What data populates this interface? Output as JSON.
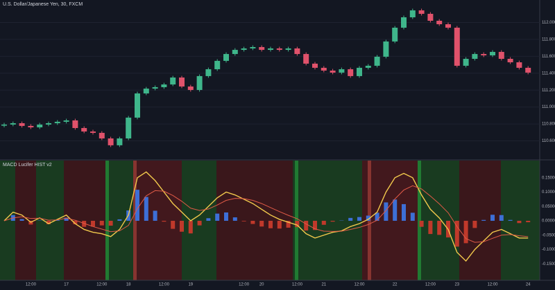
{
  "chart_data": [
    {
      "type": "candlestick",
      "title": "U.S. Dollar/Japanese Yen, 30, FXCM",
      "up_color": "#3fb68b",
      "down_color": "#e0526b",
      "grid": true,
      "ylim": [
        110.4,
        112.2
      ],
      "yticks": [
        {
          "value": 110.6,
          "label": "110.600"
        },
        {
          "value": 110.8,
          "label": "110.800"
        },
        {
          "value": 111.0,
          "label": "111.000"
        },
        {
          "value": 111.2,
          "label": "111.200"
        },
        {
          "value": 111.4,
          "label": "111.400"
        },
        {
          "value": 111.6,
          "label": "111.600"
        },
        {
          "value": 111.8,
          "label": "111.800"
        },
        {
          "value": 112.0,
          "label": "112.000"
        }
      ],
      "open": [
        110.78,
        110.793,
        110.809,
        110.777,
        110.76,
        110.793,
        110.809,
        110.826,
        110.842,
        110.752,
        110.711,
        110.695,
        110.629,
        110.548,
        110.629,
        110.875,
        111.161,
        111.218,
        111.235,
        111.267,
        111.349,
        111.243,
        111.202,
        111.366,
        111.447,
        111.546,
        111.627,
        111.676,
        111.693,
        111.709,
        111.676,
        111.693,
        111.676,
        111.693,
        111.627,
        111.513,
        111.464,
        111.431,
        111.407,
        111.447,
        111.366,
        111.464,
        111.488,
        111.595,
        111.775,
        111.938,
        112.061,
        112.143,
        112.102,
        112.02,
        111.979,
        111.938,
        111.488,
        111.57,
        111.627,
        111.611,
        111.652,
        111.57,
        111.529,
        111.464
      ],
      "high": [
        110.813,
        110.829,
        110.829,
        110.797,
        110.813,
        110.829,
        110.846,
        110.862,
        110.862,
        110.772,
        110.731,
        110.715,
        110.649,
        110.649,
        110.895,
        111.181,
        111.238,
        111.255,
        111.287,
        111.369,
        111.369,
        111.263,
        111.386,
        111.467,
        111.566,
        111.647,
        111.696,
        111.713,
        111.729,
        111.729,
        111.713,
        111.713,
        111.713,
        111.713,
        111.647,
        111.533,
        111.484,
        111.451,
        111.467,
        111.467,
        111.484,
        111.508,
        111.615,
        111.795,
        111.958,
        112.081,
        112.163,
        112.163,
        112.122,
        112.04,
        111.999,
        111.958,
        111.59,
        111.647,
        111.647,
        111.672,
        111.672,
        111.59,
        111.549,
        111.484
      ],
      "low": [
        110.76,
        110.773,
        110.757,
        110.74,
        110.74,
        110.773,
        110.789,
        110.806,
        110.732,
        110.691,
        110.675,
        110.609,
        110.528,
        110.528,
        110.609,
        110.855,
        111.141,
        111.198,
        111.215,
        111.247,
        111.223,
        111.182,
        111.182,
        111.346,
        111.427,
        111.526,
        111.607,
        111.656,
        111.673,
        111.656,
        111.656,
        111.656,
        111.656,
        111.607,
        111.493,
        111.444,
        111.411,
        111.387,
        111.387,
        111.346,
        111.346,
        111.444,
        111.468,
        111.575,
        111.755,
        111.918,
        112.041,
        112.082,
        112.0,
        111.959,
        111.918,
        111.468,
        111.468,
        111.55,
        111.591,
        111.591,
        111.55,
        111.509,
        111.444,
        111.387
      ],
      "close": [
        110.793,
        110.809,
        110.777,
        110.76,
        110.793,
        110.809,
        110.826,
        110.842,
        110.752,
        110.711,
        110.695,
        110.629,
        110.548,
        110.629,
        110.875,
        111.161,
        111.218,
        111.235,
        111.267,
        111.349,
        111.243,
        111.202,
        111.366,
        111.447,
        111.546,
        111.627,
        111.676,
        111.693,
        111.709,
        111.676,
        111.693,
        111.676,
        111.693,
        111.627,
        111.513,
        111.464,
        111.431,
        111.407,
        111.447,
        111.366,
        111.464,
        111.488,
        111.595,
        111.775,
        111.938,
        112.061,
        112.143,
        112.102,
        112.02,
        111.979,
        111.938,
        111.488,
        111.57,
        111.627,
        111.611,
        111.652,
        111.57,
        111.529,
        111.464,
        111.407
      ]
    },
    {
      "type": "macd",
      "title": "MACD Lucifer HIST v2",
      "ylim": [
        -0.2,
        0.2
      ],
      "yticks": [
        {
          "value": -0.15,
          "label": "-0.15000"
        },
        {
          "value": -0.1,
          "label": "-0.10000"
        },
        {
          "value": -0.05,
          "label": "-0.05000"
        },
        {
          "value": 0,
          "label": "0.00000"
        },
        {
          "value": 0.05,
          "label": "0.05000"
        },
        {
          "value": 0.1,
          "label": "0.10000"
        },
        {
          "value": 0.15,
          "label": "0.15000"
        }
      ],
      "categories": [
        null,
        null,
        null,
        "12:00",
        null,
        null,
        null,
        "17",
        null,
        null,
        null,
        "12:00",
        null,
        null,
        "18",
        null,
        null,
        null,
        "12:00",
        null,
        null,
        "19",
        null,
        null,
        null,
        null,
        null,
        "12:00",
        null,
        "20",
        null,
        null,
        null,
        "12:00",
        null,
        null,
        "21",
        null,
        null,
        null,
        "12:00",
        null,
        null,
        null,
        "22",
        null,
        null,
        null,
        "12:00",
        null,
        null,
        "23",
        null,
        null,
        null,
        "12:00",
        null,
        null,
        null,
        "24"
      ],
      "series": [
        {
          "color": "#f2c94c",
          "values": [
            0.0,
            0.03,
            0.02,
            -0.005,
            0.01,
            -0.01,
            0.005,
            0.02,
            -0.01,
            -0.03,
            -0.04,
            -0.045,
            -0.055,
            -0.03,
            0.02,
            0.15,
            0.17,
            0.14,
            0.1,
            0.06,
            0.03,
            0.0,
            0.02,
            0.05,
            0.08,
            0.1,
            0.09,
            0.075,
            0.06,
            0.04,
            0.02,
            0.005,
            -0.005,
            -0.015,
            -0.045,
            -0.06,
            -0.05,
            -0.04,
            -0.035,
            -0.02,
            -0.01,
            0.005,
            0.03,
            0.1,
            0.15,
            0.165,
            0.15,
            0.09,
            0.04,
            0.01,
            -0.03,
            -0.11,
            -0.14,
            -0.1,
            -0.07,
            -0.04,
            -0.03,
            -0.045,
            -0.06,
            -0.06
          ]
        },
        {
          "color": "#e05a47",
          "values": [
            0.0,
            0.01,
            0.014,
            0.008,
            0.009,
            0.002,
            0.003,
            0.009,
            0.002,
            -0.009,
            -0.02,
            -0.029,
            -0.038,
            -0.035,
            -0.016,
            0.042,
            0.087,
            0.105,
            0.103,
            0.088,
            0.068,
            0.044,
            0.036,
            0.041,
            0.055,
            0.071,
            0.078,
            0.077,
            0.071,
            0.06,
            0.046,
            0.032,
            0.019,
            0.007,
            -0.011,
            -0.028,
            -0.036,
            -0.037,
            -0.036,
            -0.03,
            -0.023,
            -0.013,
            0.002,
            0.036,
            0.076,
            0.107,
            0.122,
            0.111,
            0.086,
            0.059,
            0.028,
            -0.02,
            -0.062,
            -0.075,
            -0.073,
            -0.061,
            -0.05,
            -0.048,
            -0.052,
            -0.055
          ]
        }
      ],
      "hist_up_color": "#3d6fd6",
      "hist_down_color": "#c0392b",
      "hist": [
        0.0,
        0.02,
        0.006,
        -0.013,
        0.001,
        -0.012,
        0.002,
        0.011,
        -0.012,
        -0.021,
        -0.02,
        -0.016,
        -0.017,
        0.005,
        0.036,
        0.108,
        0.083,
        0.035,
        -0.003,
        -0.028,
        -0.038,
        -0.044,
        -0.016,
        0.009,
        0.025,
        0.029,
        0.012,
        -0.002,
        -0.011,
        -0.02,
        -0.026,
        -0.027,
        -0.024,
        -0.022,
        -0.034,
        -0.032,
        -0.014,
        -0.003,
        0.001,
        0.01,
        0.013,
        0.018,
        0.028,
        0.064,
        0.074,
        0.058,
        0.028,
        -0.021,
        -0.046,
        -0.049,
        -0.058,
        -0.09,
        -0.078,
        -0.025,
        0.003,
        0.021,
        0.02,
        0.003,
        -0.008,
        -0.005
      ]
    }
  ]
}
